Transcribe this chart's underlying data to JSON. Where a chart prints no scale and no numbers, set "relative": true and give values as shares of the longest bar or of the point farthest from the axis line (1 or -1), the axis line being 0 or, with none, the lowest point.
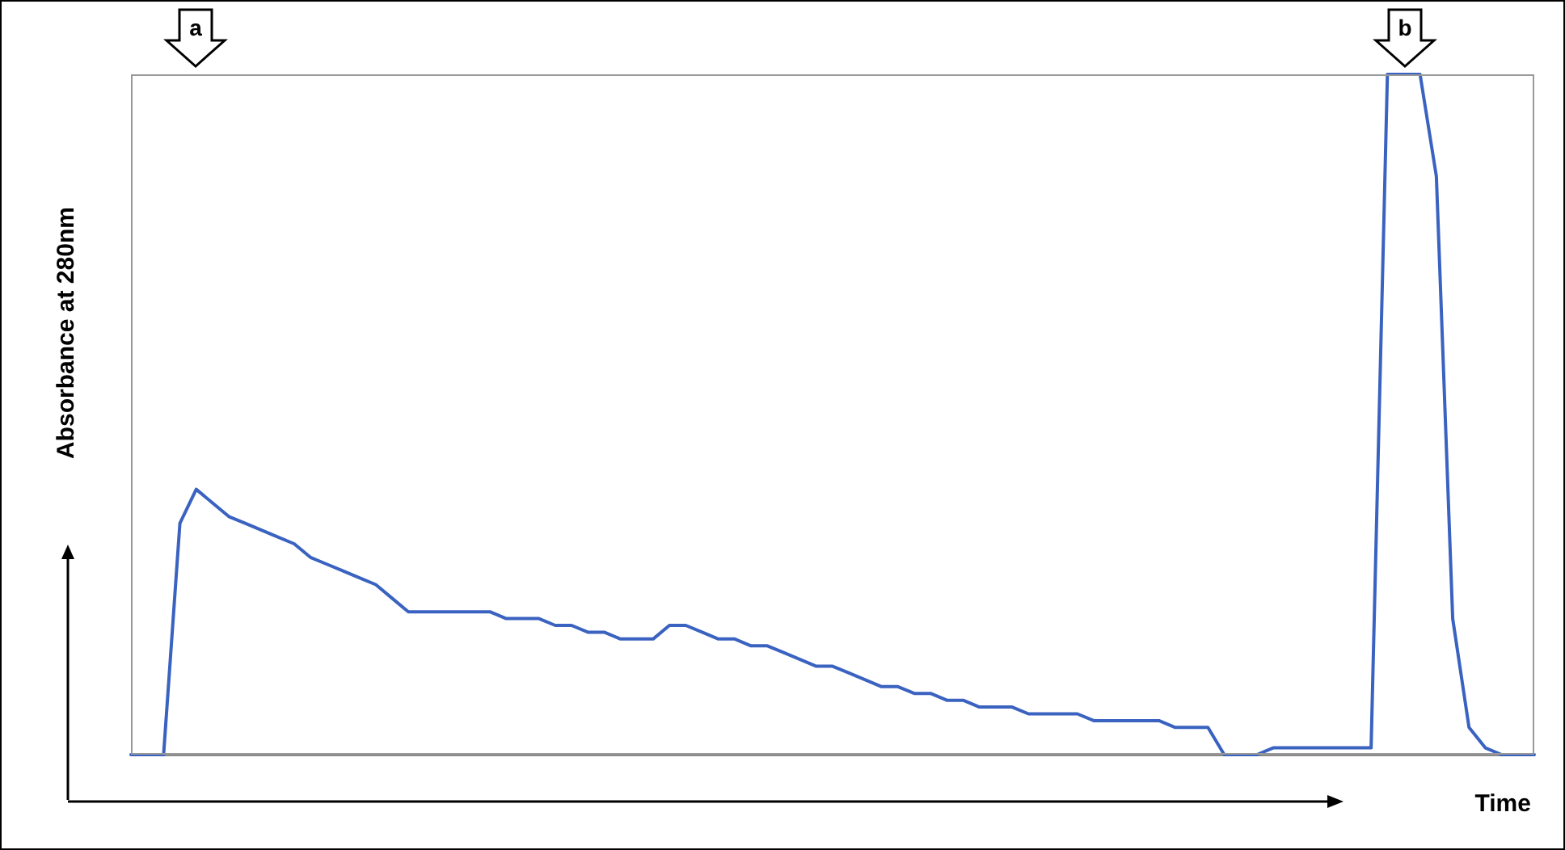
{
  "chart_data": {
    "type": "line",
    "relative": true,
    "xlabel": "Time",
    "ylabel": "Absorbance at 280nm",
    "annotations": [
      "a",
      "b"
    ],
    "marker": "none",
    "line_style": "solid",
    "categories": [
      null,
      null,
      null,
      null,
      null,
      null,
      null,
      null,
      null,
      null,
      null,
      null,
      null,
      null,
      null,
      null,
      null,
      null,
      null,
      null,
      null,
      null,
      null,
      null,
      null,
      null,
      null,
      null,
      null,
      null,
      null,
      null,
      null,
      null,
      null,
      null,
      null,
      null,
      null,
      null,
      null,
      null,
      null,
      null,
      null,
      null,
      null,
      null,
      null,
      null,
      null,
      null,
      null,
      null,
      null,
      null,
      null,
      null,
      null,
      null,
      null,
      null,
      null,
      null,
      null,
      null,
      null,
      null,
      null,
      null,
      null,
      null,
      null,
      null,
      null,
      null,
      null,
      null,
      null,
      null,
      null,
      null,
      null,
      null,
      null,
      null,
      null
    ],
    "series": [
      {
        "color": "#3a62c0",
        "values": [
          0,
          0,
          0,
          0.34,
          0.39,
          0.37,
          0.35,
          0.34,
          0.33,
          0.32,
          0.31,
          0.29,
          0.28,
          0.27,
          0.26,
          0.25,
          0.23,
          0.21,
          0.21,
          0.21,
          0.21,
          0.21,
          0.21,
          0.2,
          0.2,
          0.2,
          0.19,
          0.19,
          0.18,
          0.18,
          0.17,
          0.17,
          0.17,
          0.19,
          0.19,
          0.18,
          0.17,
          0.17,
          0.16,
          0.16,
          0.15,
          0.14,
          0.13,
          0.13,
          0.12,
          0.11,
          0.1,
          0.1,
          0.09,
          0.09,
          0.08,
          0.08,
          0.07,
          0.07,
          0.07,
          0.06,
          0.06,
          0.06,
          0.06,
          0.05,
          0.05,
          0.05,
          0.05,
          0.05,
          0.04,
          0.04,
          0.04,
          0,
          0,
          0,
          0.01,
          0.01,
          0.01,
          0.01,
          0.01,
          0.01,
          0.01,
          1,
          1,
          1,
          0.85,
          0.2,
          0.04,
          0.01,
          0,
          0,
          0
        ]
      }
    ]
  }
}
